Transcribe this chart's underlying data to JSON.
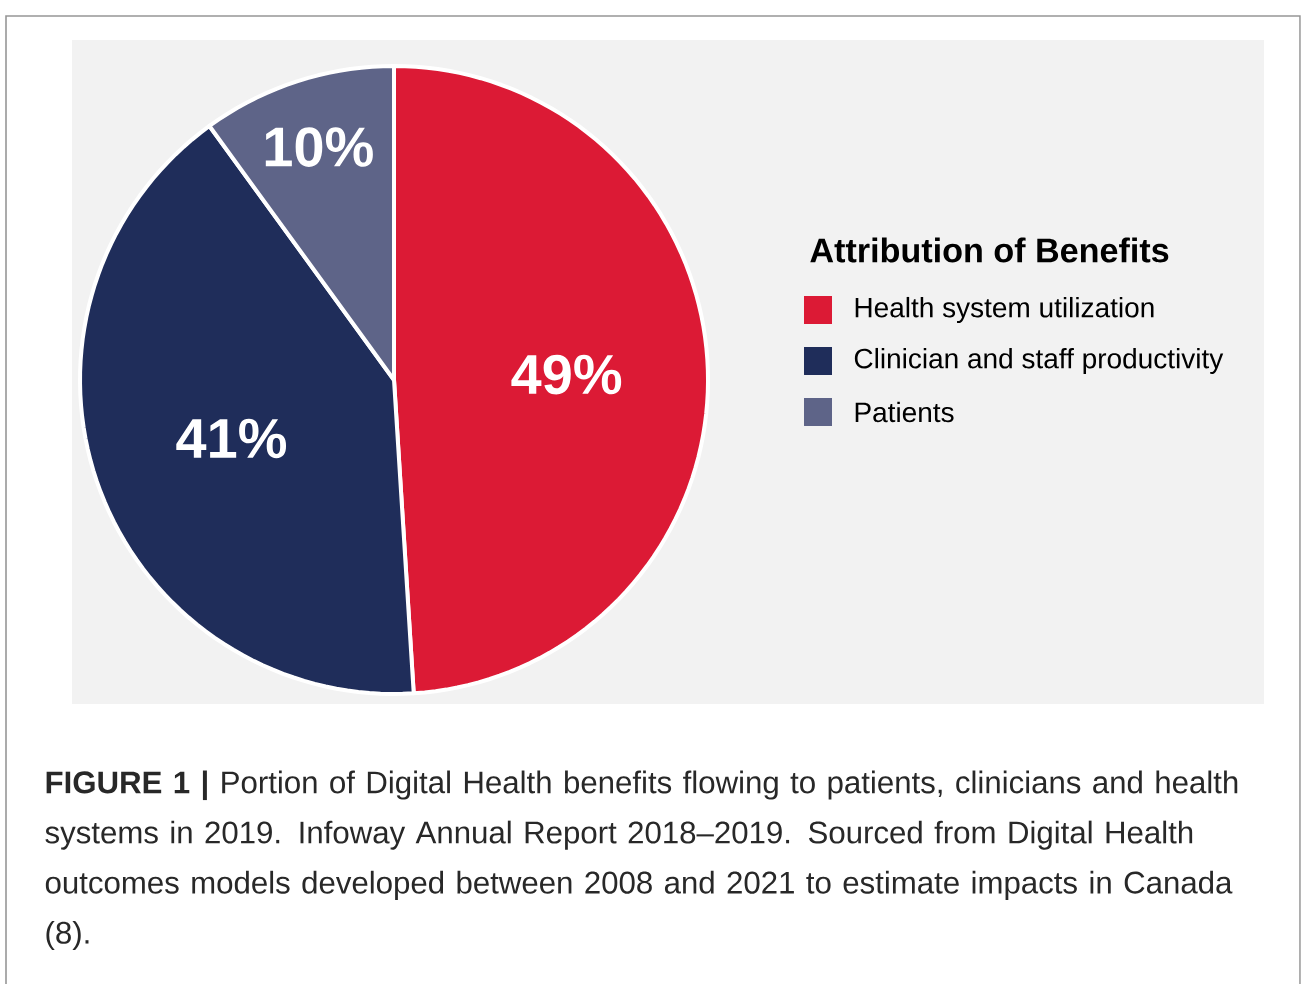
{
  "chart_data": {
    "type": "pie",
    "legend_title": "Attribution of Benefits",
    "categories": [
      "Health system utilization",
      "Clinician and staff productivity",
      "Patients"
    ],
    "values": [
      49,
      41,
      10
    ],
    "colors": [
      "#dc1a35",
      "#1f2d5a",
      "#5e6488"
    ],
    "value_labels": [
      "49%",
      "41%",
      "10%"
    ],
    "legend": "right",
    "annotations": [
      "**FIGURE 1 |** Portion of Digital Health benefits flowing to patients, clinicians and health systems in 2019. Infoway Annual Report 2018–2019. Sourced from Digital Health outcomes models developed between 2008 and 2021 to estimate impacts in Canada (8)."
    ]
  }
}
